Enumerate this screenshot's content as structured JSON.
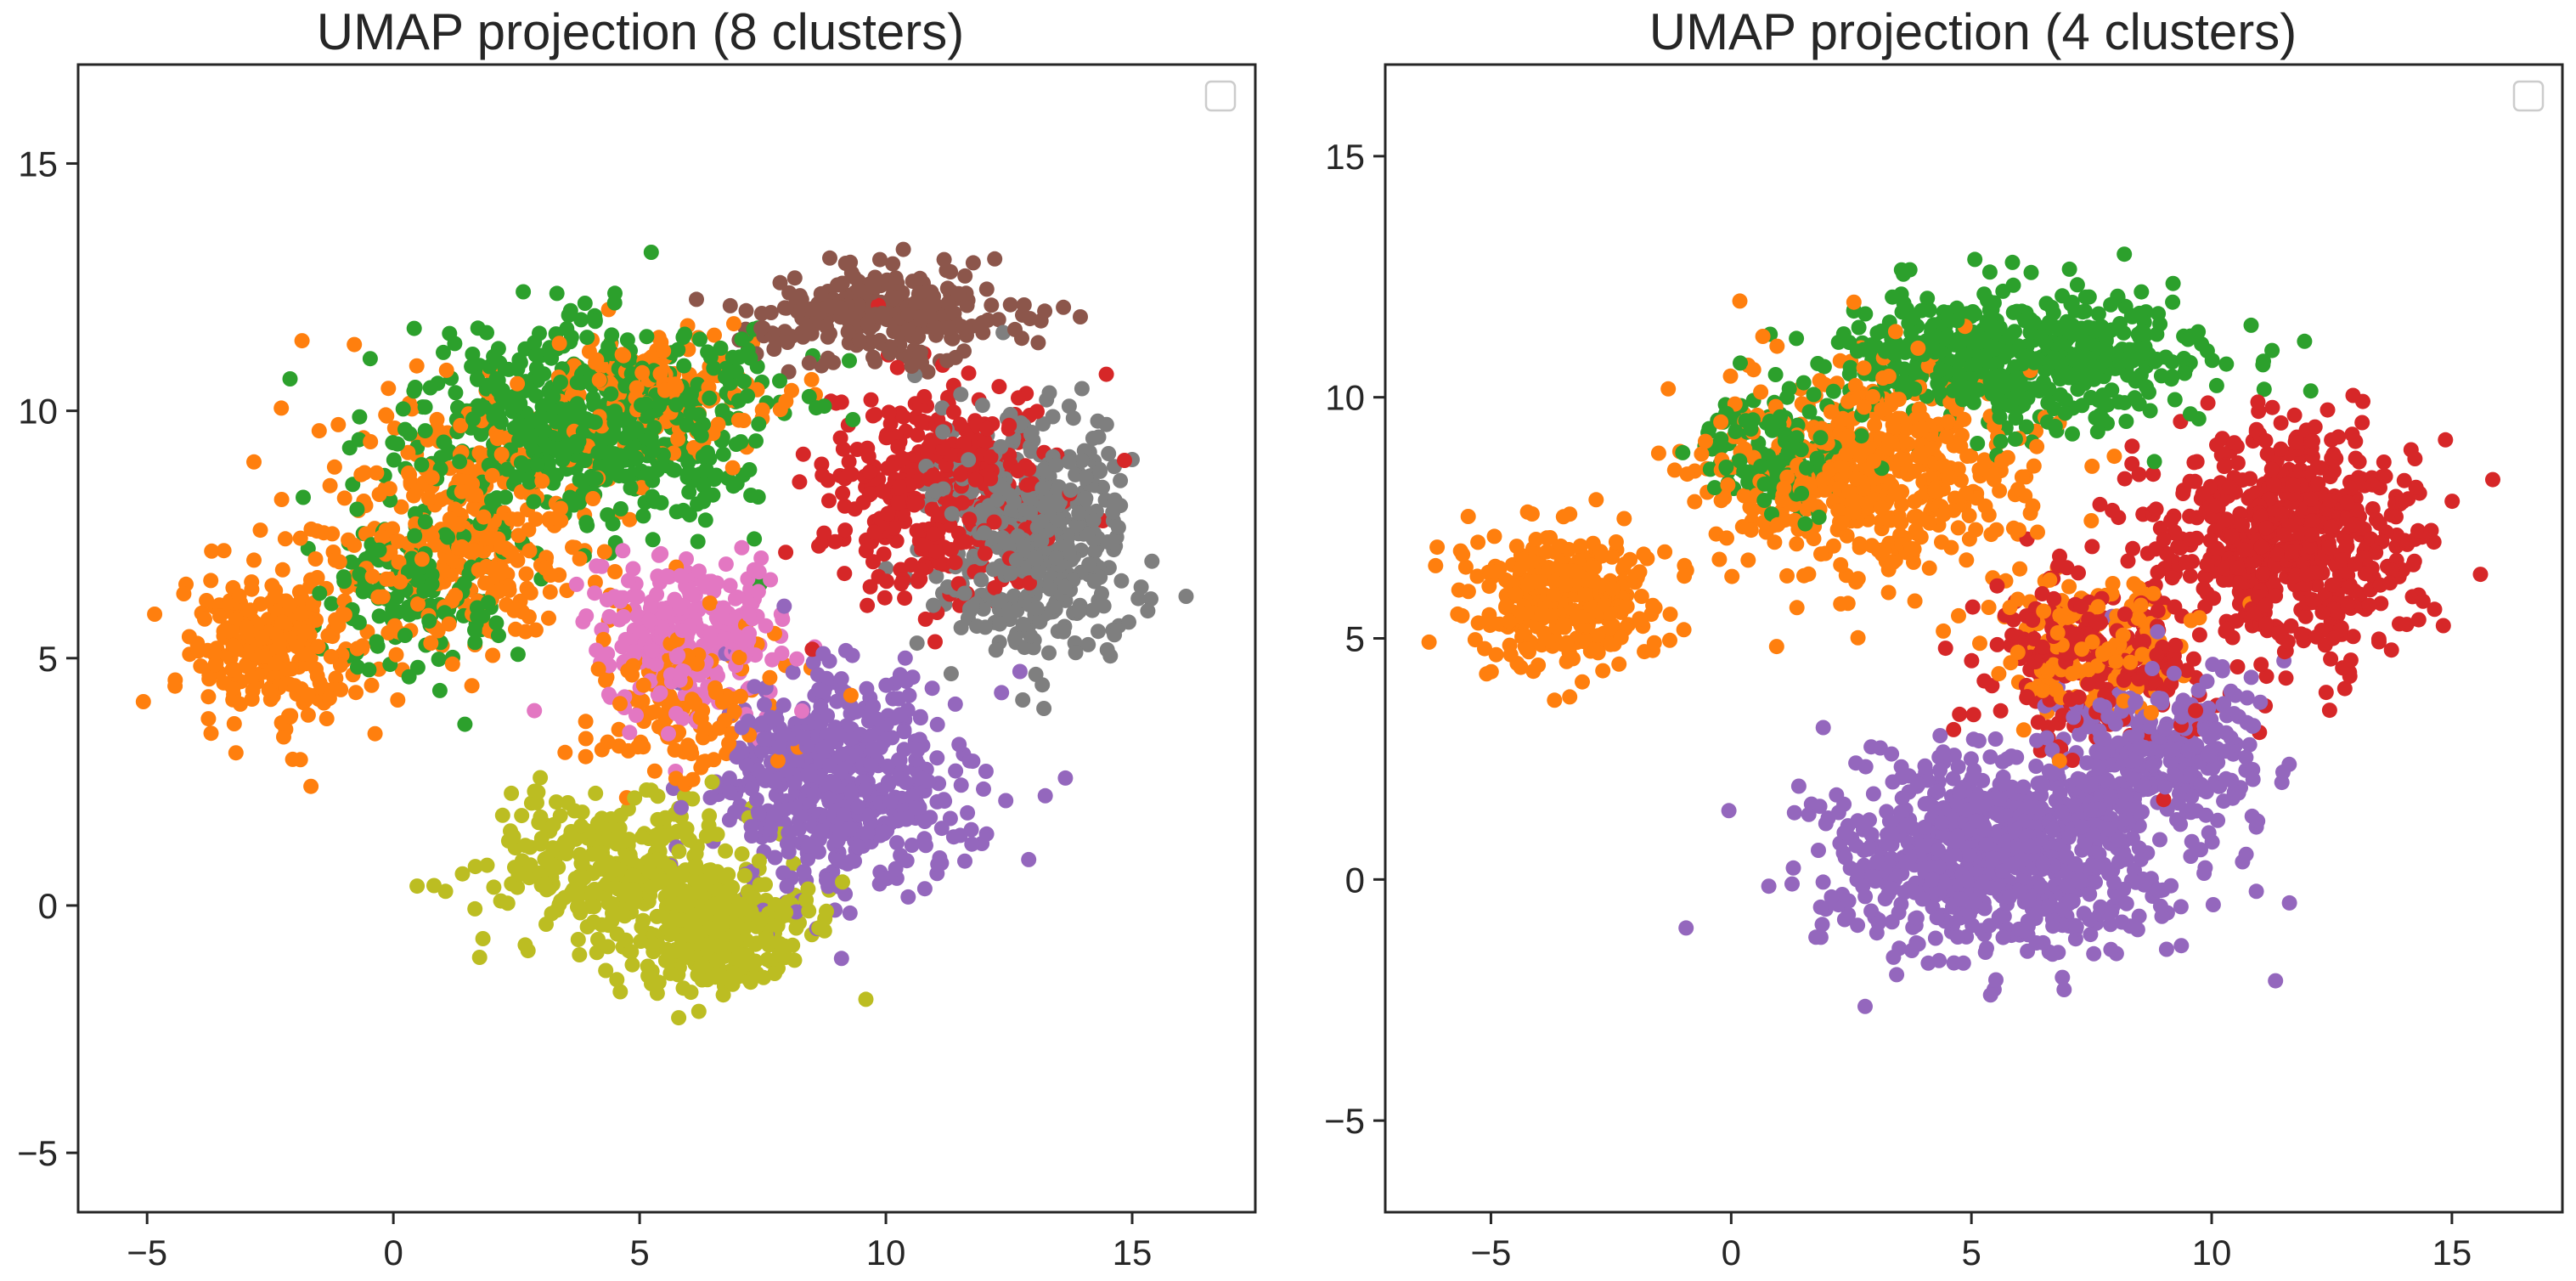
{
  "chart_data": [
    {
      "type": "scatter",
      "title": "UMAP projection (8 clusters)",
      "xlabel": "",
      "ylabel": "",
      "xlim": [
        -6.4,
        17.5
      ],
      "ylim": [
        -6.2,
        17.0
      ],
      "xticks": [
        -5,
        0,
        5,
        10,
        15
      ],
      "yticks": [
        -5,
        0,
        5,
        10,
        15
      ],
      "xtick_labels": [
        "−5",
        "0",
        "5",
        "10",
        "15"
      ],
      "ytick_labels": [
        "−5",
        "0",
        "5",
        "10",
        "15"
      ],
      "grid": false,
      "legend": {
        "placement": "top-right",
        "entries": []
      },
      "clusters": [
        {
          "color": "#ff7f0e",
          "points": 900,
          "blobs": [
            [
              -2.5,
              5.2,
              1.6,
              1.4,
              3
            ],
            [
              1.5,
              7.5,
              2.6,
              2.2,
              4
            ],
            [
              5.5,
              10.5,
              2.2,
              1.2,
              2
            ],
            [
              6.0,
              4.0,
              2.0,
              1.5,
              1.5
            ]
          ]
        },
        {
          "color": "#2ca02c",
          "points": 750,
          "blobs": [
            [
              4.0,
              9.8,
              3.2,
              1.8,
              4
            ],
            [
              0.5,
              6.5,
              1.8,
              1.5,
              1
            ]
          ]
        },
        {
          "color": "#8c564b",
          "points": 260,
          "blobs": [
            [
              10.0,
              12.0,
              2.5,
              0.9,
              1
            ]
          ]
        },
        {
          "color": "#d62728",
          "points": 380,
          "blobs": [
            [
              11.0,
              8.5,
              2.0,
              2.0,
              1
            ]
          ]
        },
        {
          "color": "#7f7f7f",
          "points": 480,
          "blobs": [
            [
              13.0,
              7.5,
              1.8,
              2.2,
              1
            ]
          ]
        },
        {
          "color": "#e377c2",
          "points": 280,
          "blobs": [
            [
              6.0,
              5.5,
              1.8,
              1.5,
              1
            ]
          ]
        },
        {
          "color": "#9467bd",
          "points": 550,
          "blobs": [
            [
              9.0,
              2.5,
              2.3,
              2.0,
              1
            ]
          ]
        },
        {
          "color": "#bcbd22",
          "points": 620,
          "blobs": [
            [
              4.5,
              0.8,
              2.3,
              1.3,
              1
            ],
            [
              6.5,
              -0.5,
              1.8,
              1.1,
              1
            ]
          ]
        }
      ]
    },
    {
      "type": "scatter",
      "title": "UMAP projection (4 clusters)",
      "xlabel": "",
      "ylabel": "",
      "xlim": [
        -7.2,
        17.3
      ],
      "ylim": [
        -6.9,
        16.9
      ],
      "xticks": [
        -5,
        0,
        5,
        10,
        15
      ],
      "yticks": [
        -5,
        0,
        5,
        10,
        15
      ],
      "xtick_labels": [
        "−5",
        "0",
        "5",
        "10",
        "15"
      ],
      "ytick_labels": [
        "−5",
        "0",
        "5",
        "10",
        "15"
      ],
      "grid": false,
      "legend": {
        "placement": "top-right",
        "entries": []
      },
      "clusters": [
        {
          "color": "#ff7f0e",
          "points": 1000,
          "blobs": [
            [
              -3.5,
              5.8,
              1.8,
              1.3,
              3
            ],
            [
              3.0,
              8.5,
              3.0,
              2.2,
              5
            ],
            [
              7.5,
              5.0,
              1.8,
              1.4,
              1.5
            ]
          ]
        },
        {
          "color": "#2ca02c",
          "points": 650,
          "blobs": [
            [
              6.0,
              10.8,
              3.5,
              1.3,
              4
            ],
            [
              1.0,
              9.0,
              1.5,
              1.2,
              1
            ]
          ]
        },
        {
          "color": "#d62728",
          "points": 850,
          "blobs": [
            [
              11.5,
              7.0,
              2.5,
              2.2,
              4
            ],
            [
              7.5,
              4.5,
              2.0,
              1.5,
              1.5
            ]
          ]
        },
        {
          "color": "#9467bd",
          "points": 1150,
          "blobs": [
            [
              5.5,
              0.5,
              3.2,
              1.8,
              4
            ],
            [
              9.0,
              2.5,
              2.0,
              1.5,
              1.5
            ]
          ]
        }
      ]
    }
  ]
}
